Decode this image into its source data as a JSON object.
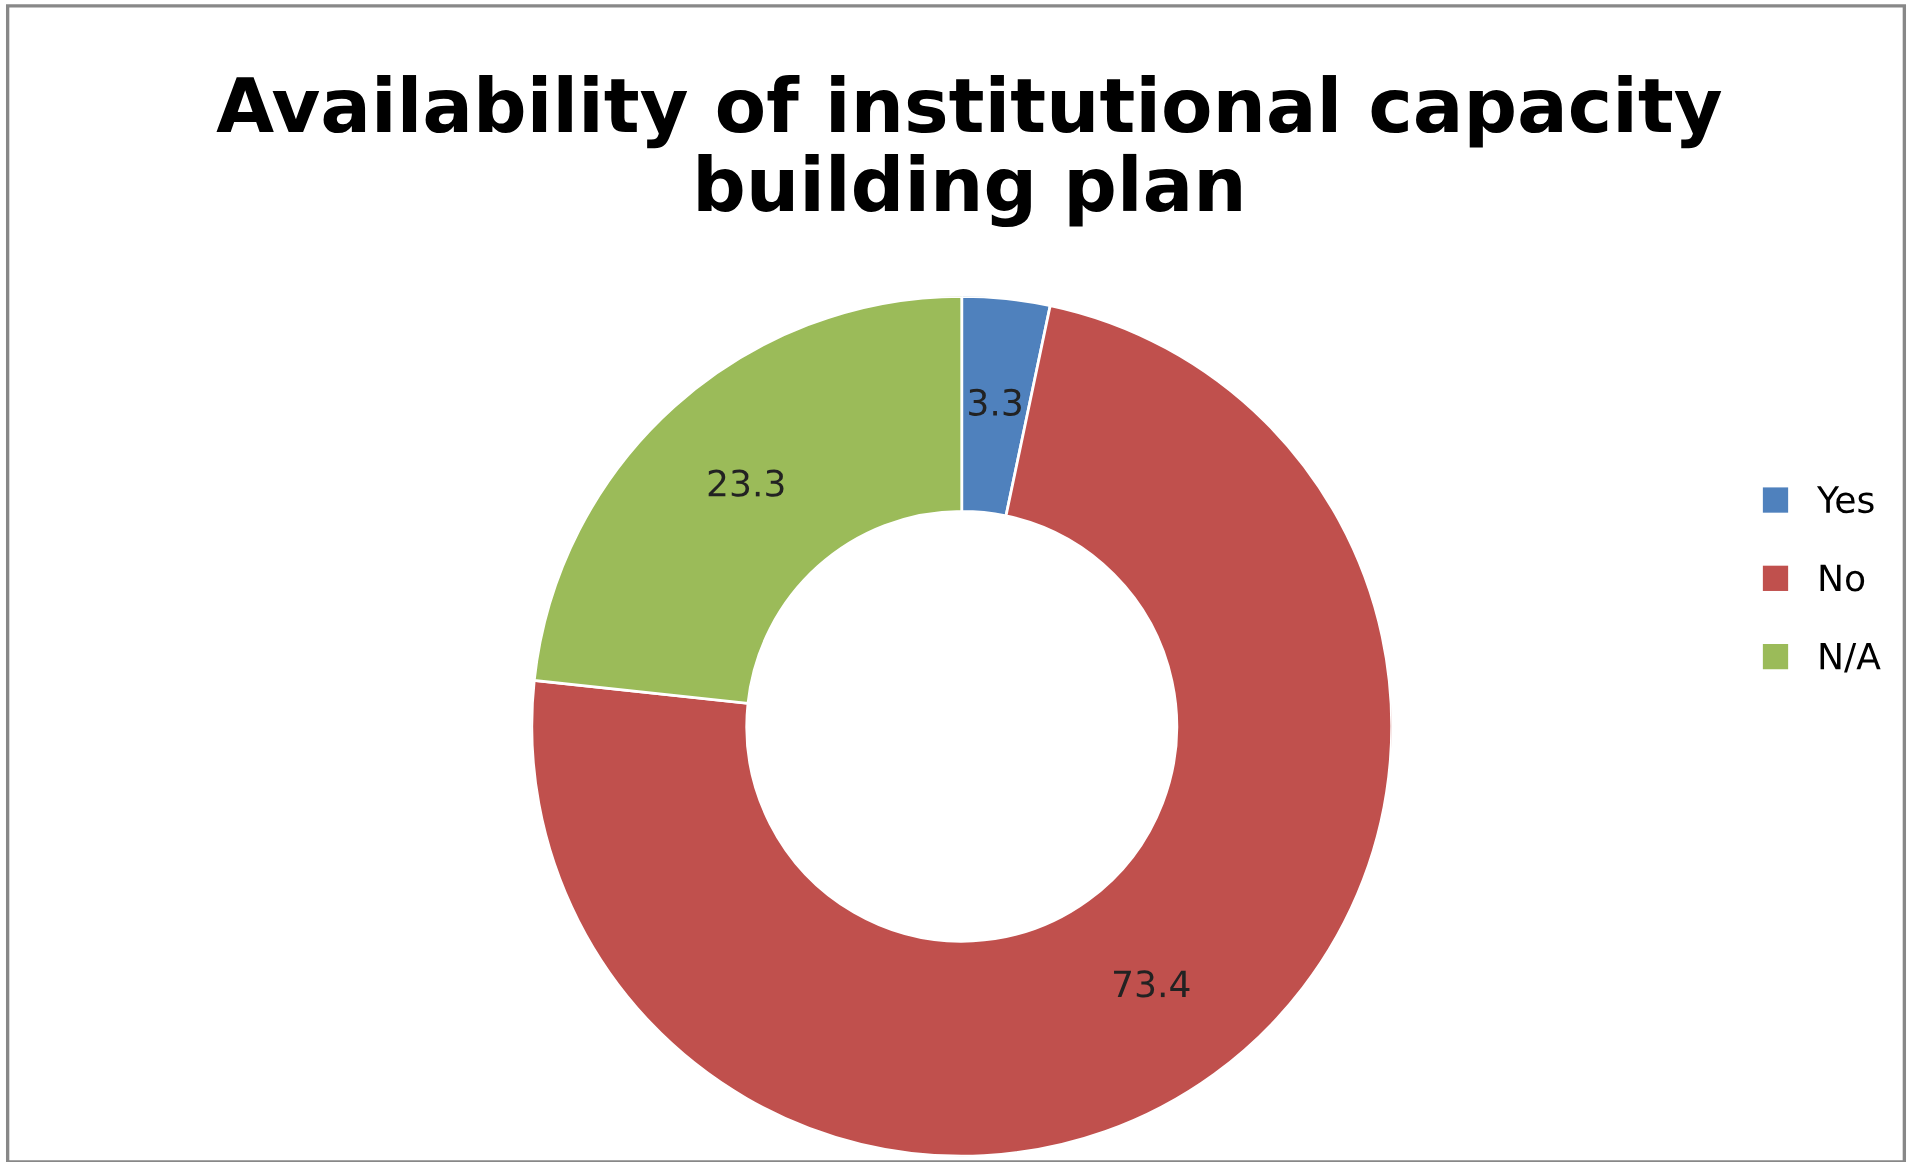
{
  "chart_data": {
    "type": "donut",
    "title": "Availability of institutional capacity\nbuilding plan",
    "categories": [
      "Yes",
      "No",
      "N/A"
    ],
    "values": [
      3.3,
      73.4,
      23.3
    ],
    "colors": [
      "#4f81bd",
      "#c0504d",
      "#9bbb59"
    ],
    "data_labels": true,
    "legend": "right"
  }
}
